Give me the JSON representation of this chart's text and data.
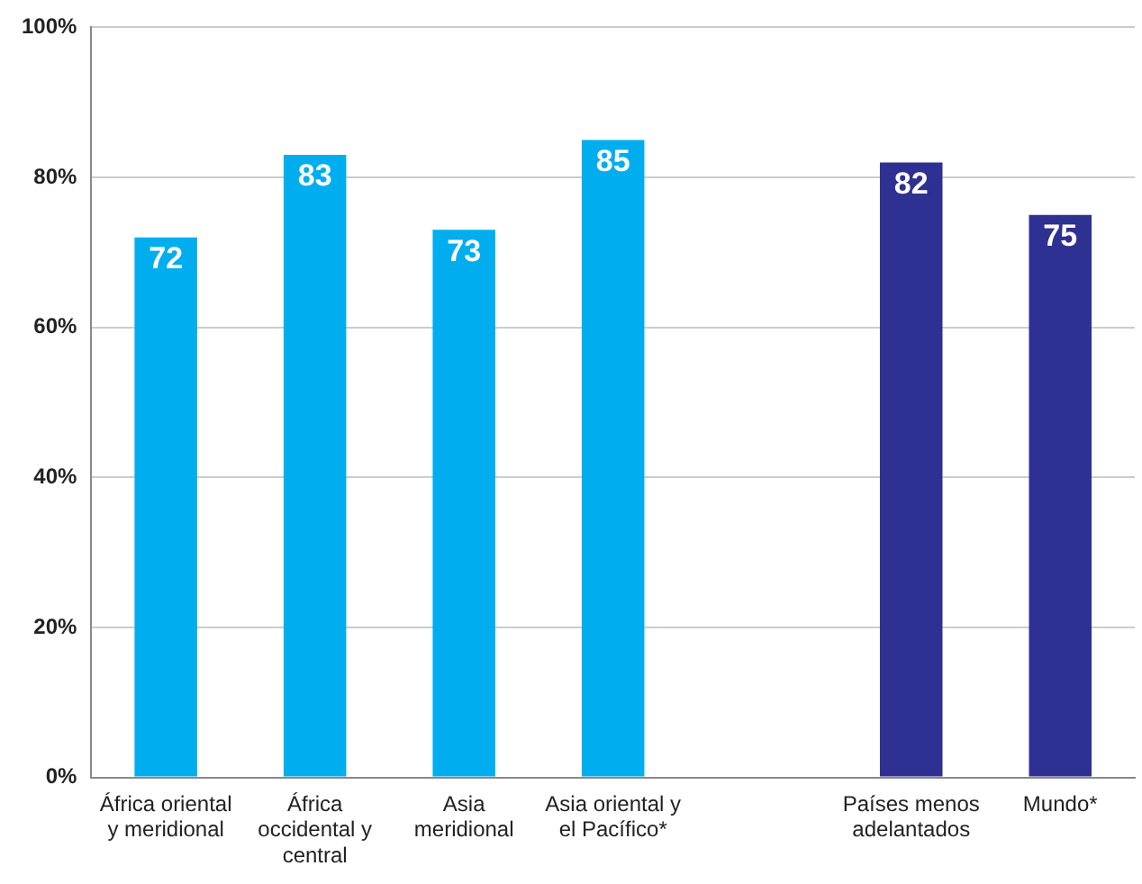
{
  "chart_data": {
    "type": "bar",
    "categories": [
      "África oriental y meridional",
      "África occidental y central",
      "Asia meridional",
      "Asia oriental y el Pacífico*",
      null,
      "Países menos adelantados",
      "Mundo*"
    ],
    "values": [
      72,
      83,
      73,
      85,
      null,
      82,
      75
    ],
    "colors": [
      "#00aeef",
      "#00aeef",
      "#00aeef",
      "#00aeef",
      null,
      "#2e3192",
      "#2e3192"
    ],
    "ylim": [
      0,
      100
    ],
    "yticks": [
      {
        "value": 0,
        "label": "0%"
      },
      {
        "value": 20,
        "label": "20%"
      },
      {
        "value": 40,
        "label": "40%"
      },
      {
        "value": 60,
        "label": "60%"
      },
      {
        "value": 80,
        "label": "80%"
      },
      {
        "value": 100,
        "label": "100%"
      }
    ],
    "grid": "y",
    "data_labels": true,
    "legend": false
  }
}
